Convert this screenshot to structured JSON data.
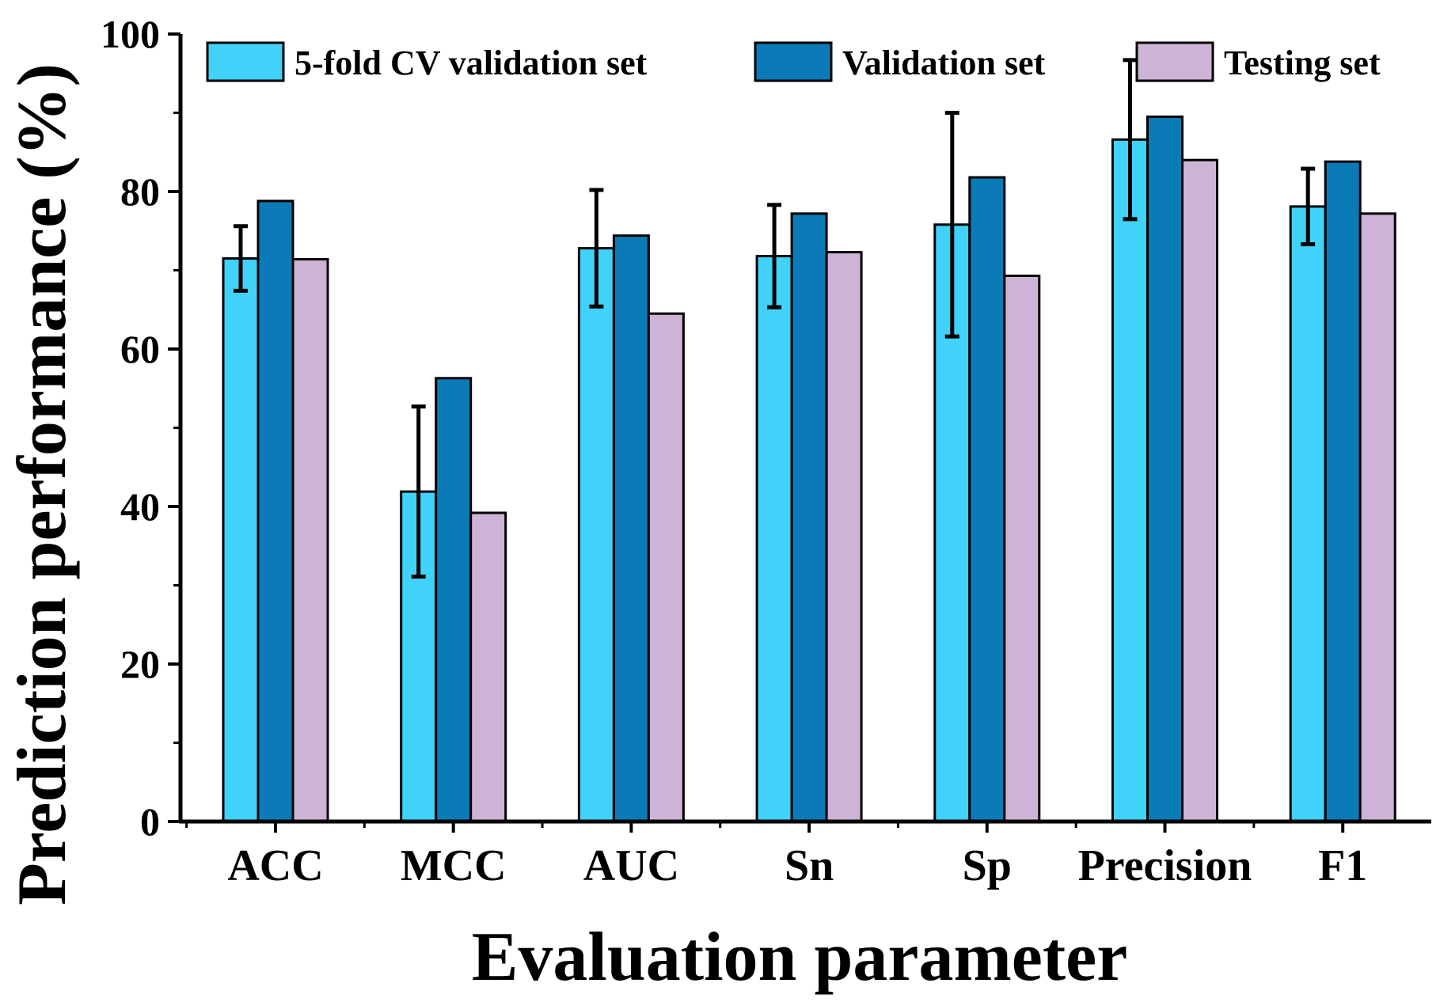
{
  "chart_data": {
    "type": "bar",
    "title": "",
    "xlabel": "Evaluation parameter",
    "ylabel": "Prediction performance (%)",
    "ylim": [
      0,
      100
    ],
    "yticks": [
      0,
      20,
      40,
      60,
      80,
      100
    ],
    "grid": false,
    "legend_position": "top",
    "categories": [
      "ACC",
      "MCC",
      "AUC",
      "Sn",
      "Sp",
      "Precision",
      "F1"
    ],
    "series": [
      {
        "name": "5-fold CV validation set",
        "color": "#41D2FA",
        "values": [
          71.5,
          41.9,
          72.8,
          71.8,
          75.8,
          86.6,
          78.1
        ],
        "error": [
          4.1,
          10.8,
          7.4,
          6.5,
          14.2,
          10.1,
          4.8
        ]
      },
      {
        "name": "Validation set",
        "color": "#0B7BB7",
        "values": [
          78.8,
          56.3,
          74.4,
          77.2,
          81.8,
          89.5,
          83.8
        ],
        "error": null
      },
      {
        "name": "Testing set",
        "color": "#CDB4D7",
        "values": [
          71.4,
          39.2,
          64.5,
          72.3,
          69.3,
          84.0,
          77.2
        ],
        "error": null
      }
    ]
  }
}
